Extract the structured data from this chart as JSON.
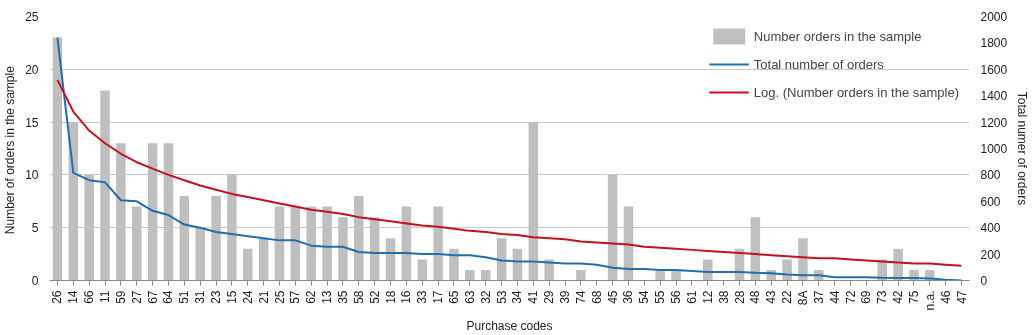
{
  "chart_data": {
    "type": "bar",
    "xlabel": "Purchase codes",
    "ylabel": "Number of orders  in the sample",
    "y2label": "Total numer of orders",
    "categories": [
      "26",
      "14",
      "66",
      "11",
      "59",
      "27",
      "67",
      "64",
      "51",
      "31",
      "23",
      "15",
      "24",
      "21",
      "25",
      "57",
      "62",
      "13",
      "35",
      "58",
      "52",
      "18",
      "16",
      "33",
      "17",
      "65",
      "63",
      "32",
      "53",
      "34",
      "41",
      "29",
      "39",
      "74",
      "68",
      "45",
      "36",
      "54",
      "55",
      "56",
      "61",
      "12",
      "38",
      "28",
      "48",
      "43",
      "22",
      "8A",
      "37",
      "44",
      "72",
      "69",
      "73",
      "42",
      "75",
      "n.a.",
      "46",
      "47"
    ],
    "series": [
      {
        "name": "Number orders in the sample",
        "color": "#bfbfbf",
        "values": [
          23,
          15,
          10,
          18,
          13,
          7,
          13,
          13,
          8,
          5,
          8,
          10,
          3,
          4,
          7,
          7,
          7,
          7,
          6,
          8,
          6,
          4,
          7,
          2,
          7,
          3,
          1,
          1,
          4,
          3,
          15,
          2,
          0,
          1,
          0,
          10,
          7,
          0,
          1,
          1,
          0,
          2,
          0,
          3,
          6,
          1,
          2,
          4,
          1,
          0,
          0,
          0,
          2,
          3,
          1,
          1,
          0,
          0
        ]
      },
      {
        "name": "Total number of orders",
        "type": "line",
        "axis": "y2",
        "color": "#1f6eb0",
        "values": [
          1840,
          816,
          760,
          744,
          608,
          600,
          528,
          496,
          424,
          400,
          368,
          352,
          336,
          320,
          304,
          304,
          264,
          256,
          256,
          216,
          208,
          208,
          208,
          200,
          200,
          192,
          192,
          176,
          152,
          144,
          144,
          136,
          128,
          128,
          120,
          96,
          88,
          88,
          80,
          80,
          72,
          65,
          65,
          65,
          58,
          55,
          45,
          40,
          40,
          25,
          25,
          25,
          20,
          18,
          18,
          15,
          5,
          0
        ]
      },
      {
        "name": "Log. (Number orders in the sample)",
        "type": "line",
        "color": "#c8101c",
        "values": [
          19.0,
          16.0,
          14.2,
          13.0,
          12.0,
          11.2,
          10.6,
          10.0,
          9.5,
          9.0,
          8.6,
          8.2,
          7.9,
          7.6,
          7.3,
          7.0,
          6.7,
          6.5,
          6.3,
          6.0,
          5.8,
          5.6,
          5.4,
          5.2,
          5.1,
          4.9,
          4.7,
          4.6,
          4.4,
          4.3,
          4.1,
          4.0,
          3.9,
          3.7,
          3.6,
          3.5,
          3.4,
          3.2,
          3.1,
          3.0,
          2.9,
          2.8,
          2.7,
          2.6,
          2.5,
          2.4,
          2.3,
          2.2,
          2.1,
          2.1,
          2.0,
          1.9,
          1.8,
          1.7,
          1.6,
          1.6,
          1.5,
          1.4
        ]
      }
    ],
    "ylim": [
      0,
      25
    ],
    "yticks": [
      0,
      5,
      10,
      15,
      20,
      25
    ],
    "y2lim": [
      0,
      2000
    ],
    "y2ticks": [
      0,
      200,
      400,
      600,
      800,
      1000,
      1200,
      1400,
      1600,
      1800,
      2000
    ],
    "grid": "y",
    "legend": "top right",
    "marker": "none",
    "line_style": "solid"
  }
}
